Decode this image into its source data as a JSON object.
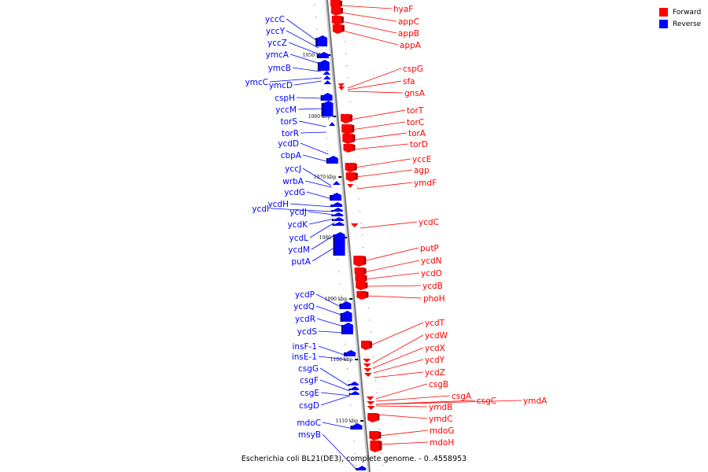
{
  "caption": "Escherichia coli BL21(DE3), complete genome. - 0..4558953",
  "legend": [
    {
      "label": "Forward",
      "color": "#ff0000"
    },
    {
      "label": "Reverse",
      "color": "#0000ff"
    }
  ],
  "kbp_marks": [
    "1050 kbp",
    "1060 kbp",
    "1070 kbp",
    "1080 kbp",
    "1090 kbp",
    "1100 kbp",
    "1110 kbp"
  ],
  "forward_genes": [
    "hyaF",
    "appC",
    "appB",
    "appA",
    "cspG",
    "sfa",
    "gnsA",
    "torT",
    "torC",
    "torA",
    "torD",
    "yccE",
    "agp",
    "ymdF",
    "ycdC",
    "putP",
    "ycdN",
    "ycdO",
    "ycdB",
    "phoH",
    "ycdT",
    "ycdW",
    "ycdX",
    "ycdY",
    "ycdZ",
    "csgB",
    "csgA",
    "csgC",
    "ymdA",
    "ymdB",
    "ymdC",
    "mdoG",
    "mdoH"
  ],
  "reverse_genes": [
    "yccC",
    "yccY",
    "yccZ",
    "ymcA",
    "ymcB",
    "ymcC",
    "ymcD",
    "cspH",
    "yccM",
    "torS",
    "torR",
    "ycdD",
    "cbpA",
    "yccJ",
    "wrbA",
    "ycdG",
    "ycdH",
    "ycdI",
    "ycdJ",
    "ycdK",
    "ycdL",
    "ycdM",
    "putA",
    "ycdP",
    "ycdQ",
    "ycdR",
    "ycdS",
    "insF-1",
    "insE-1",
    "csgG",
    "csgF",
    "csgE",
    "csgD",
    "mdoC",
    "msyB"
  ]
}
